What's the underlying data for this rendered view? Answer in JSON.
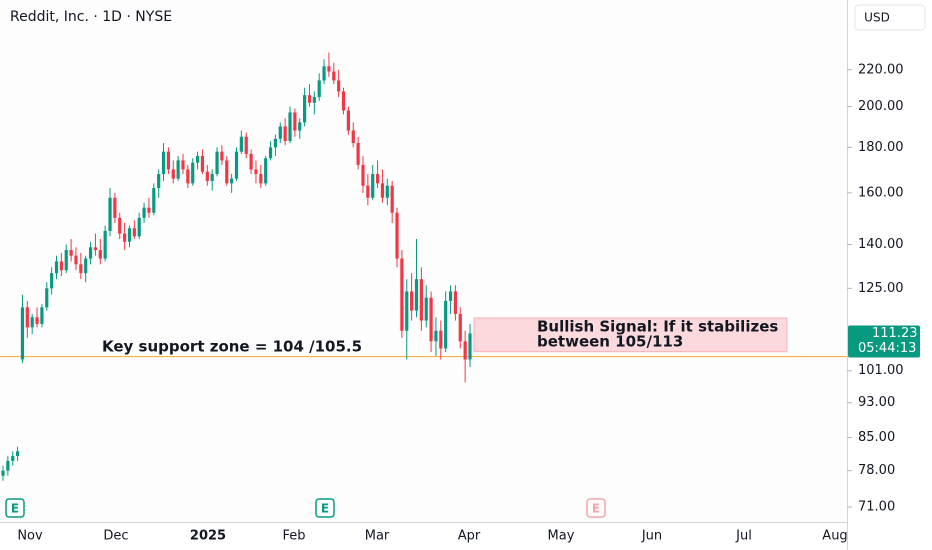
{
  "chart_data": {
    "type": "candlestick",
    "title": "Reddit, Inc. · 1D · NYSE",
    "currency": "USD",
    "log_scale": true,
    "up_color": "#089981",
    "down_color": "#f23645",
    "ylim": [
      68.3,
      263.5
    ],
    "yticks": [
      {
        "value": 220,
        "label": "220.00"
      },
      {
        "value": 200,
        "label": "200.00"
      },
      {
        "value": 180,
        "label": "180.00"
      },
      {
        "value": 160,
        "label": "160.00"
      },
      {
        "value": 140,
        "label": "140.00"
      },
      {
        "value": 125,
        "label": "125.00"
      },
      {
        "value": 101,
        "label": "101.00"
      },
      {
        "value": 93,
        "label": "93.00"
      },
      {
        "value": 85,
        "label": "85.00"
      },
      {
        "value": 78,
        "label": "78.00"
      },
      {
        "value": 71,
        "label": "71.00"
      }
    ],
    "xticks": [
      "Nov",
      "Dec",
      "2025",
      "Feb",
      "Mar",
      "Apr",
      "May",
      "Jun",
      "Jul",
      "Aug"
    ],
    "candles": [
      [
        77,
        79,
        76,
        78
      ],
      [
        78,
        81,
        77,
        80
      ],
      [
        80,
        82,
        79,
        81
      ],
      [
        81,
        83,
        80,
        82
      ],
      [
        104,
        123,
        103,
        119
      ],
      [
        119,
        121,
        110,
        113
      ],
      [
        113,
        117,
        111,
        116
      ],
      [
        116,
        119,
        113,
        114
      ],
      [
        114,
        120,
        113,
        119
      ],
      [
        119,
        127,
        118,
        125
      ],
      [
        125,
        132,
        123,
        130
      ],
      [
        130,
        136,
        128,
        134
      ],
      [
        134,
        137,
        129,
        131
      ],
      [
        131,
        140,
        130,
        138
      ],
      [
        138,
        142,
        134,
        136
      ],
      [
        136,
        139,
        131,
        133
      ],
      [
        133,
        137,
        128,
        130
      ],
      [
        130,
        136,
        127,
        135
      ],
      [
        135,
        141,
        133,
        139
      ],
      [
        139,
        144,
        136,
        138
      ],
      [
        138,
        142,
        133,
        135
      ],
      [
        135,
        147,
        134,
        145
      ],
      [
        145,
        162,
        143,
        158
      ],
      [
        158,
        160,
        148,
        150
      ],
      [
        150,
        152,
        142,
        144
      ],
      [
        144,
        148,
        138,
        141
      ],
      [
        141,
        147,
        139,
        146
      ],
      [
        146,
        149,
        142,
        143
      ],
      [
        143,
        152,
        142,
        150
      ],
      [
        150,
        156,
        148,
        154
      ],
      [
        154,
        158,
        150,
        152
      ],
      [
        152,
        164,
        151,
        162
      ],
      [
        162,
        170,
        158,
        168
      ],
      [
        168,
        182,
        165,
        178
      ],
      [
        178,
        180,
        168,
        170
      ],
      [
        170,
        174,
        164,
        166
      ],
      [
        166,
        176,
        165,
        174
      ],
      [
        174,
        177,
        168,
        170
      ],
      [
        170,
        172,
        162,
        164
      ],
      [
        164,
        175,
        163,
        173
      ],
      [
        173,
        178,
        170,
        176
      ],
      [
        176,
        179,
        168,
        169
      ],
      [
        169,
        172,
        163,
        165
      ],
      [
        165,
        170,
        161,
        168
      ],
      [
        168,
        180,
        167,
        178
      ],
      [
        178,
        181,
        172,
        174
      ],
      [
        174,
        176,
        163,
        164
      ],
      [
        164,
        168,
        160,
        166
      ],
      [
        166,
        180,
        165,
        178
      ],
      [
        178,
        188,
        177,
        185
      ],
      [
        185,
        187,
        175,
        177
      ],
      [
        177,
        179,
        168,
        170
      ],
      [
        170,
        174,
        164,
        168
      ],
      [
        168,
        172,
        162,
        164
      ],
      [
        164,
        176,
        163,
        175
      ],
      [
        175,
        183,
        174,
        180
      ],
      [
        180,
        186,
        176,
        184
      ],
      [
        184,
        192,
        182,
        190
      ],
      [
        190,
        194,
        181,
        183
      ],
      [
        183,
        200,
        182,
        197
      ],
      [
        197,
        199,
        185,
        188
      ],
      [
        188,
        194,
        184,
        192
      ],
      [
        192,
        210,
        190,
        206
      ],
      [
        206,
        212,
        200,
        202
      ],
      [
        202,
        208,
        196,
        205
      ],
      [
        205,
        218,
        203,
        214
      ],
      [
        214,
        226,
        212,
        222
      ],
      [
        222,
        230,
        216,
        219
      ],
      [
        219,
        224,
        212,
        214
      ],
      [
        214,
        220,
        205,
        208
      ],
      [
        208,
        210,
        196,
        198
      ],
      [
        198,
        200,
        186,
        188
      ],
      [
        188,
        192,
        180,
        182
      ],
      [
        182,
        185,
        170,
        172
      ],
      [
        172,
        176,
        160,
        163
      ],
      [
        163,
        168,
        155,
        158
      ],
      [
        158,
        172,
        157,
        168
      ],
      [
        168,
        174,
        162,
        164
      ],
      [
        164,
        170,
        156,
        158
      ],
      [
        158,
        166,
        155,
        163
      ],
      [
        163,
        165,
        148,
        152
      ],
      [
        152,
        154,
        132,
        135
      ],
      [
        135,
        138,
        110,
        112
      ],
      [
        112,
        128,
        104,
        124
      ],
      [
        124,
        130,
        115,
        118
      ],
      [
        118,
        142,
        116,
        128
      ],
      [
        128,
        132,
        112,
        115
      ],
      [
        115,
        126,
        113,
        122
      ],
      [
        122,
        124,
        106,
        109
      ],
      [
        109,
        116,
        105,
        112
      ],
      [
        112,
        115,
        104,
        107
      ],
      [
        107,
        124,
        106,
        121
      ],
      [
        121,
        126,
        117,
        124
      ],
      [
        124,
        126,
        115,
        117
      ],
      [
        117,
        119,
        107,
        109
      ],
      [
        109,
        112,
        98,
        104
      ],
      [
        104,
        114,
        102,
        111.23
      ]
    ],
    "countdown": "05:44:13",
    "support_level": 104.75,
    "support_label": "Key support zone = 104 /105.5",
    "signal_zone": [
      106.1,
      115.8
    ],
    "signal_label": [
      "Bullish Signal: If it stabilizes",
      "between 105/113"
    ],
    "earnings_markers": [
      "E",
      "E",
      "E"
    ]
  }
}
